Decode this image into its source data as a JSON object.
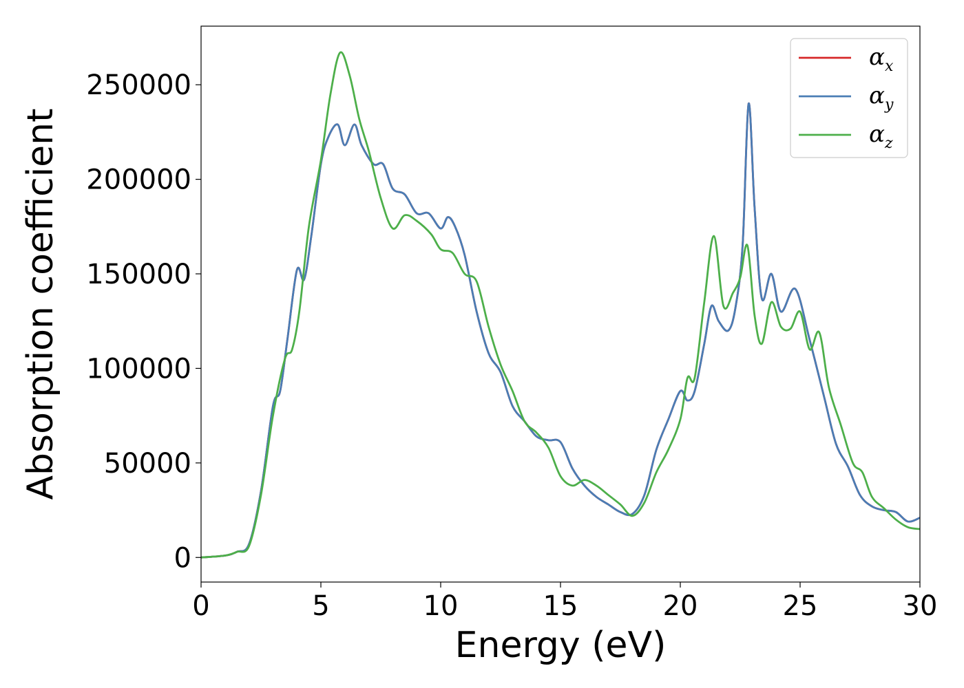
{
  "chart_data": {
    "type": "line",
    "xlabel": "Energy (eV)",
    "ylabel": "Absorption coefficient",
    "xlim": [
      0,
      30
    ],
    "ylim": [
      -13000,
      281000
    ],
    "xticks": [
      0,
      5,
      10,
      15,
      20,
      25,
      30
    ],
    "yticks": [
      0,
      50000,
      100000,
      150000,
      200000,
      250000
    ],
    "grid": false,
    "legend_position": "top-right",
    "series": [
      {
        "name": "x",
        "legend_symbol": "α",
        "legend_subscript": "x",
        "color": "#d62728",
        "x": [
          0,
          1,
          1.5,
          2,
          2.5,
          3,
          3.3,
          3.6,
          4,
          4.3,
          4.6,
          5,
          5.3,
          5.7,
          6,
          6.4,
          6.7,
          7.2,
          7.6,
          8,
          8.5,
          9,
          9.5,
          10,
          10.3,
          10.6,
          11,
          11.5,
          12,
          12.5,
          13,
          13.5,
          14,
          14.5,
          15,
          15.5,
          16,
          16.5,
          17,
          17.5,
          18,
          18.5,
          19,
          19.5,
          20,
          20.3,
          20.6,
          21,
          21.3,
          21.6,
          22,
          22.3,
          22.6,
          22.85,
          23.1,
          23.4,
          23.8,
          24.2,
          24.8,
          25.4,
          26,
          26.5,
          27,
          27.5,
          28,
          28.5,
          29,
          29.5,
          30
        ],
        "y": [
          0,
          1000,
          3000,
          7000,
          35000,
          80000,
          88000,
          115000,
          152000,
          147000,
          170000,
          208000,
          222000,
          229000,
          218000,
          229000,
          218000,
          208000,
          208000,
          195000,
          192000,
          182000,
          182000,
          174000,
          180000,
          175000,
          160000,
          130000,
          108000,
          98000,
          80000,
          72000,
          64000,
          62000,
          61000,
          47000,
          38000,
          32000,
          28000,
          24000,
          23000,
          33000,
          57000,
          73000,
          88000,
          83000,
          88000,
          113000,
          133000,
          125000,
          120000,
          132000,
          165000,
          240000,
          185000,
          137000,
          150000,
          130000,
          142000,
          115000,
          85000,
          60000,
          48000,
          33000,
          27000,
          25000,
          24000,
          19000,
          21000
        ]
      },
      {
        "name": "y",
        "legend_symbol": "α",
        "legend_subscript": "y",
        "color": "#4a7db5",
        "x": [
          0,
          1,
          1.5,
          2,
          2.5,
          3,
          3.3,
          3.6,
          4,
          4.3,
          4.6,
          5,
          5.3,
          5.7,
          6,
          6.4,
          6.7,
          7.2,
          7.6,
          8,
          8.5,
          9,
          9.5,
          10,
          10.3,
          10.6,
          11,
          11.5,
          12,
          12.5,
          13,
          13.5,
          14,
          14.5,
          15,
          15.5,
          16,
          16.5,
          17,
          17.5,
          18,
          18.5,
          19,
          19.5,
          20,
          20.3,
          20.6,
          21,
          21.3,
          21.6,
          22,
          22.3,
          22.6,
          22.85,
          23.1,
          23.4,
          23.8,
          24.2,
          24.8,
          25.4,
          26,
          26.5,
          27,
          27.5,
          28,
          28.5,
          29,
          29.5,
          30
        ],
        "y": [
          0,
          1000,
          3000,
          7000,
          35000,
          80000,
          88000,
          115000,
          152000,
          147000,
          170000,
          208000,
          222000,
          229000,
          218000,
          229000,
          218000,
          208000,
          208000,
          195000,
          192000,
          182000,
          182000,
          174000,
          180000,
          175000,
          160000,
          130000,
          108000,
          98000,
          80000,
          72000,
          64000,
          62000,
          61000,
          47000,
          38000,
          32000,
          28000,
          24000,
          23000,
          33000,
          57000,
          73000,
          88000,
          83000,
          88000,
          113000,
          133000,
          125000,
          120000,
          132000,
          165000,
          240000,
          185000,
          137000,
          150000,
          130000,
          142000,
          115000,
          85000,
          60000,
          48000,
          33000,
          27000,
          25000,
          24000,
          19000,
          21000
        ]
      },
      {
        "name": "z",
        "legend_symbol": "α",
        "legend_subscript": "z",
        "color": "#4daf4a",
        "x": [
          0,
          1,
          1.5,
          2,
          2.5,
          3,
          3.5,
          3.8,
          4.1,
          4.5,
          5,
          5.4,
          5.8,
          6.2,
          6.6,
          7,
          7.5,
          8,
          8.5,
          9,
          9.6,
          10,
          10.5,
          11,
          11.5,
          12,
          12.5,
          13,
          13.5,
          14,
          14.5,
          15,
          15.5,
          16,
          16.5,
          17,
          17.5,
          18,
          18.5,
          19,
          19.5,
          20,
          20.3,
          20.6,
          21,
          21.4,
          21.8,
          22.2,
          22.5,
          22.8,
          23.1,
          23.4,
          23.8,
          24.2,
          24.6,
          25,
          25.4,
          25.8,
          26.2,
          26.7,
          27.2,
          27.6,
          28,
          28.5,
          29,
          29.5,
          30
        ],
        "y": [
          0,
          1000,
          3000,
          6000,
          33000,
          75000,
          105000,
          110000,
          130000,
          175000,
          210000,
          245000,
          267000,
          255000,
          232000,
          215000,
          190000,
          174000,
          181000,
          178000,
          171000,
          163000,
          161000,
          150000,
          146000,
          122000,
          102000,
          88000,
          72000,
          66000,
          58000,
          43000,
          38000,
          41000,
          38000,
          33000,
          28000,
          22000,
          29000,
          45000,
          57000,
          73000,
          95000,
          95000,
          135000,
          170000,
          133000,
          140000,
          148000,
          165000,
          128000,
          113000,
          135000,
          122000,
          121000,
          130000,
          110000,
          119000,
          90000,
          70000,
          50000,
          45000,
          32000,
          26000,
          20000,
          16000,
          15000
        ]
      }
    ]
  }
}
